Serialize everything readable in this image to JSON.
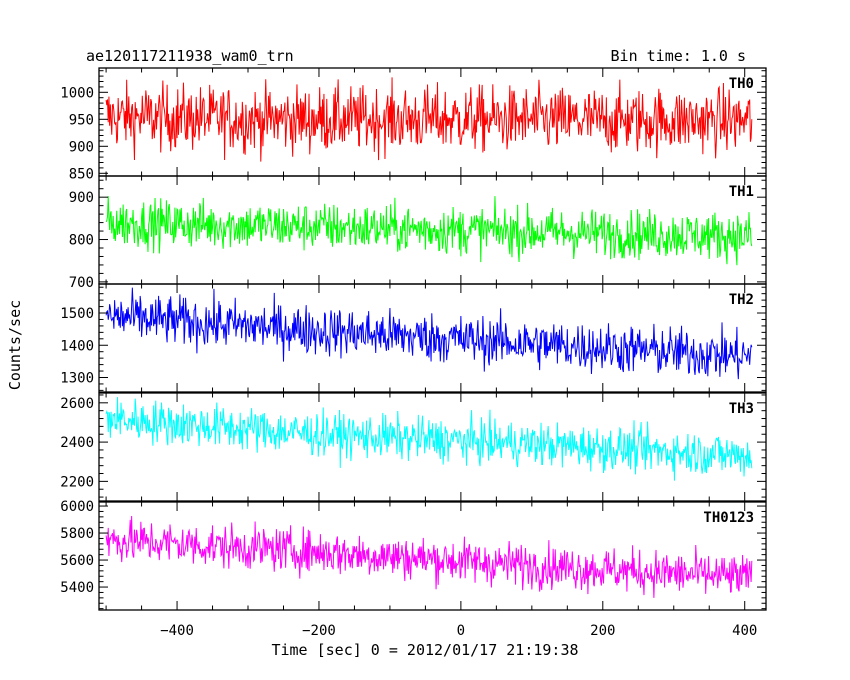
{
  "header": {
    "title": "ae120117211938_wam0_trn",
    "bin_time": "Bin time: 1.0 s"
  },
  "chart_data": {
    "type": "line",
    "title": "ae120117211938_wam0_trn",
    "subtitle": "Bin time: 1.0 s",
    "xlabel": "Time [sec] 0 = 2012/01/17 21:19:38",
    "ylabel": "Counts/sec",
    "xlim": [
      -510,
      430
    ],
    "xticks": [
      -400,
      -200,
      0,
      200,
      400
    ],
    "x_start": -500,
    "x_end": 410,
    "bin_time": 1.0,
    "grid": false,
    "panels": [
      {
        "name": "TH0",
        "color": "#ff0000",
        "ylim": [
          845,
          1045
        ],
        "yticks": [
          850,
          900,
          950,
          1000
        ],
        "trend": [
          [
            -500,
            955
          ],
          [
            -300,
            950
          ],
          [
            0,
            950
          ],
          [
            200,
            948
          ],
          [
            410,
            948
          ]
        ],
        "noise": 30
      },
      {
        "name": "TH1",
        "color": "#00ff00",
        "ylim": [
          695,
          950
        ],
        "yticks": [
          700,
          800,
          900
        ],
        "trend": [
          [
            -500,
            840
          ],
          [
            -200,
            830
          ],
          [
            100,
            818
          ],
          [
            410,
            808
          ]
        ],
        "noise": 28
      },
      {
        "name": "TH2",
        "color": "#0000ff",
        "ylim": [
          1255,
          1590
        ],
        "yticks": [
          1300,
          1400,
          1500
        ],
        "trend": [
          [
            -500,
            1490
          ],
          [
            -200,
            1445
          ],
          [
            100,
            1405
          ],
          [
            410,
            1365
          ]
        ],
        "noise": 38
      },
      {
        "name": "TH3",
        "color": "#00ffff",
        "ylim": [
          2100,
          2650
        ],
        "yticks": [
          2200,
          2400,
          2600
        ],
        "trend": [
          [
            -500,
            2520
          ],
          [
            -200,
            2440
          ],
          [
            100,
            2390
          ],
          [
            410,
            2330
          ]
        ],
        "noise": 55
      },
      {
        "name": "TH0123",
        "color": "#ff00ff",
        "ylim": [
          5230,
          6030
        ],
        "yticks": [
          5400,
          5600,
          5800,
          6000
        ],
        "trend": [
          [
            -500,
            5750
          ],
          [
            -200,
            5660
          ],
          [
            100,
            5560
          ],
          [
            410,
            5470
          ]
        ],
        "noise": 80
      }
    ]
  }
}
